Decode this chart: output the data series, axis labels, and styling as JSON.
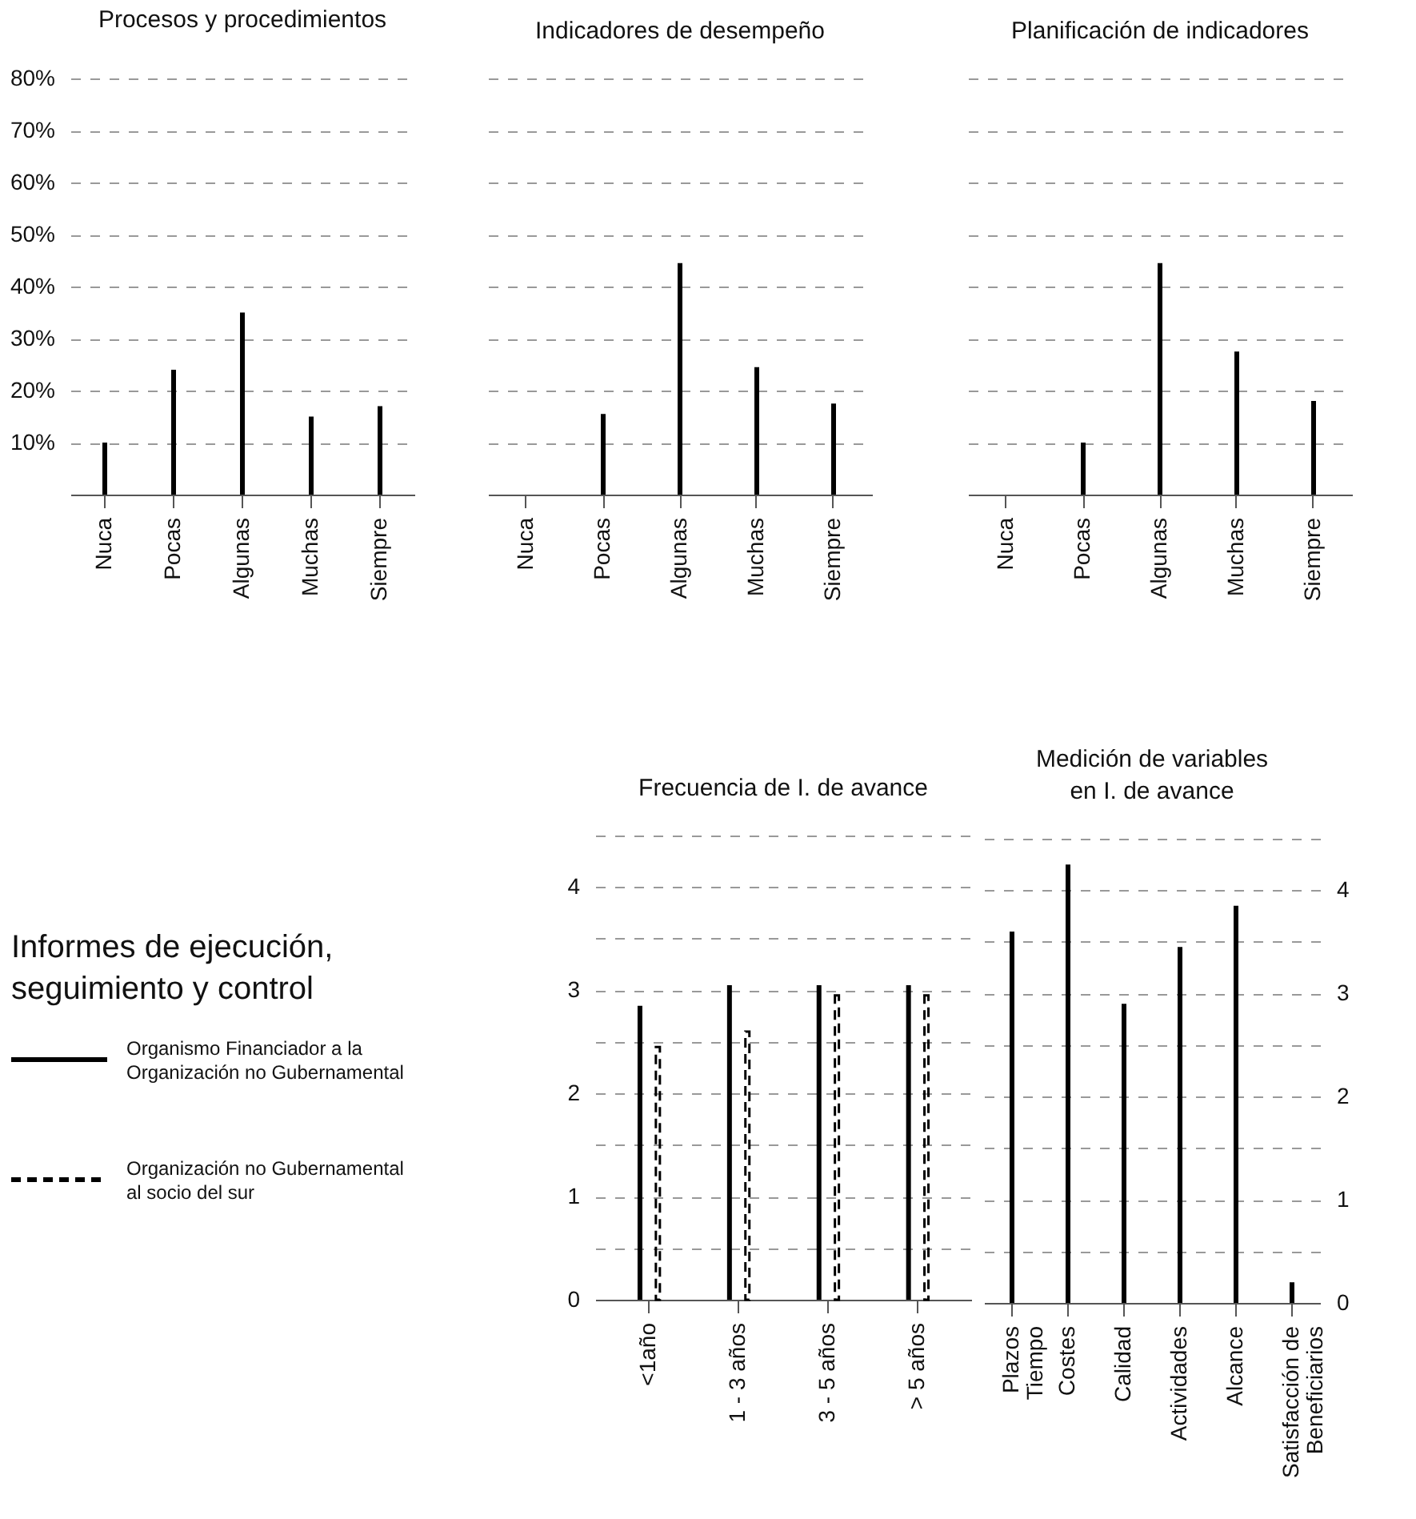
{
  "chart_data": [
    {
      "type": "bar",
      "title": "Procesos y procedimientos",
      "categories": [
        "Nuca",
        "Pocas",
        "Algunas",
        "Muchas",
        "Siempre"
      ],
      "values": [
        10,
        24,
        35,
        15,
        17
      ],
      "color": "#000000",
      "ylim": [
        0,
        80
      ],
      "yticks": [
        {
          "value": 10,
          "label": "10%"
        },
        {
          "value": 20,
          "label": "20%"
        },
        {
          "value": 30,
          "label": "30%"
        },
        {
          "value": 40,
          "label": "40%"
        },
        {
          "value": 50,
          "label": "50%"
        },
        {
          "value": 60,
          "label": "60%"
        },
        {
          "value": 70,
          "label": "70%"
        },
        {
          "value": 80,
          "label": "80%"
        }
      ],
      "grid": "y"
    },
    {
      "type": "bar",
      "title": "Indicadores de desempeño",
      "categories": [
        "Nuca",
        "Pocas",
        "Algunas",
        "Muchas",
        "Siempre"
      ],
      "values": [
        0,
        15.5,
        44.5,
        24.5,
        17.5
      ],
      "color": "#000000",
      "ylim": [
        0,
        80
      ],
      "yticks": [
        10,
        20,
        30,
        40,
        50,
        60,
        70,
        80
      ],
      "grid": "y",
      "tick_labels": "x"
    },
    {
      "type": "bar",
      "title": "Planificación de indicadores",
      "categories": [
        "Nuca",
        "Pocas",
        "Algunas",
        "Muchas",
        "Siempre"
      ],
      "values": [
        0,
        10,
        44.5,
        27.5,
        18
      ],
      "color": "#000000",
      "ylim": [
        0,
        80
      ],
      "yticks": [
        10,
        20,
        30,
        40,
        50,
        60,
        70,
        80
      ],
      "grid": "y",
      "tick_labels": "x"
    },
    {
      "type": "bar",
      "title": "Frecuencia de I. de avance",
      "categories": [
        "<1año",
        "1 - 3 años",
        "3 - 5 años",
        "> 5 años"
      ],
      "series": [
        {
          "name": "Organismo Financiador a la Organización no Gubernamental",
          "color": "#000000",
          "line_style": "solid",
          "values": [
            2.85,
            3.05,
            3.05,
            3.05
          ]
        },
        {
          "name": "Organización no Gubernamental al socio del sur",
          "color": "#000000",
          "line_style": "dashed",
          "values": [
            2.45,
            2.6,
            2.95,
            2.95
          ]
        }
      ],
      "ylim": [
        0,
        4.5
      ],
      "yticks": [
        0,
        {
          "value": 0.5,
          "label": null
        },
        1,
        {
          "value": 1.5,
          "label": null
        },
        2,
        {
          "value": 2.5,
          "label": null
        },
        3,
        {
          "value": 3.5,
          "label": null
        },
        4,
        {
          "value": 4.5,
          "label": null
        }
      ],
      "grid": "y",
      "legend": "left",
      "legend_title": "Informes de ejecución, seguimiento y control"
    },
    {
      "type": "bar",
      "title": "Medición de variables en I. de avance",
      "categories": [
        "Plazos Tiempo",
        "Costes",
        "Calidad",
        "Actividades",
        "Alcance",
        "Satisfacción de Beneficiarios"
      ],
      "series": [
        {
          "color": "#000000",
          "axis": "y2",
          "values": [
            3.6,
            4.25,
            2.9,
            3.45,
            3.85,
            0.2
          ]
        }
      ],
      "y2lim": [
        0,
        4.5
      ],
      "y2ticks": [
        0,
        {
          "value": 0.5,
          "label": null
        },
        1,
        {
          "value": 1.5,
          "label": null
        },
        2,
        {
          "value": 2.5,
          "label": null
        },
        3,
        {
          "value": 3.5,
          "label": null
        },
        4,
        {
          "value": 4.5,
          "label": null
        }
      ],
      "grid": "y"
    }
  ]
}
